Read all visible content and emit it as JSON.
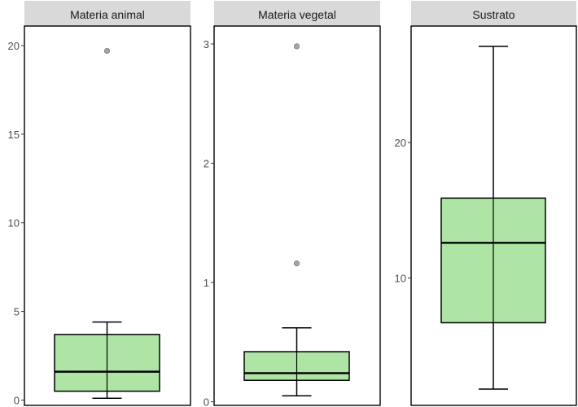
{
  "chart_data": [
    {
      "type": "boxplot",
      "title": "Materia animal",
      "ylim": [
        -0.3,
        21.1
      ],
      "yticks": [
        0,
        5,
        10,
        15,
        20
      ],
      "box": {
        "whisker_low": 0.1,
        "q1": 0.5,
        "median": 1.6,
        "q3": 3.7,
        "whisker_high": 4.4
      },
      "outliers": [
        19.7
      ],
      "fill": "#aee5a5",
      "grid": false
    },
    {
      "type": "boxplot",
      "title": "Materia vegetal",
      "ylim": [
        -0.03,
        3.15
      ],
      "yticks": [
        0,
        1,
        2,
        3
      ],
      "box": {
        "whisker_low": 0.05,
        "q1": 0.18,
        "median": 0.24,
        "q3": 0.42,
        "whisker_high": 0.62
      },
      "outliers": [
        1.16,
        2.98
      ],
      "fill": "#aee5a5",
      "grid": false
    },
    {
      "type": "boxplot",
      "title": "Sustrato",
      "ylim": [
        0.6,
        28.6
      ],
      "yticks": [
        10,
        20
      ],
      "box": {
        "whisker_low": 1.8,
        "q1": 6.7,
        "median": 12.6,
        "q3": 15.9,
        "whisker_high": 27.1
      },
      "outliers": [],
      "fill": "#aee5a5",
      "grid": false
    }
  ],
  "colors": {
    "strip": "#d9d9d9",
    "box_fill": "#aee5a5",
    "outlier": "#a6a6a6",
    "axis_text": "#4d4d4d"
  }
}
